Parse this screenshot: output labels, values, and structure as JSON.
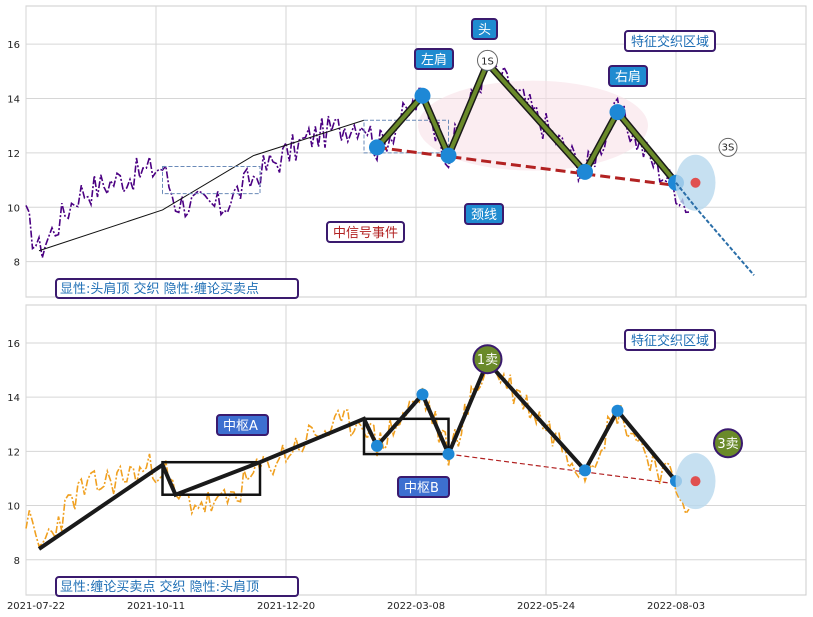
{
  "chart_data": [
    {
      "type": "line",
      "panel": "top",
      "ylim": [
        6.7,
        17.4
      ],
      "yticks": [
        8,
        10,
        12,
        14,
        16
      ],
      "xticks": [
        "2021-07-22",
        "2021-10-11",
        "2021-12-20",
        "2022-03-08",
        "2022-05-24",
        "2022-08-03"
      ],
      "grid": true,
      "price_color": "#4b0082",
      "trend_line": [
        [
          2,
          8.4
        ],
        [
          21,
          9.9
        ],
        [
          35,
          11.9
        ],
        [
          52,
          13.2
        ]
      ],
      "zhongshu_box": {
        "x0": 21,
        "x1": 36,
        "y0": 10.5,
        "y1": 11.5
      },
      "zhongshu_box2": {
        "x0": 52,
        "x1": 65,
        "y0": 12.0,
        "y1": 13.2
      },
      "pattern_points": [
        [
          54,
          12.2
        ],
        [
          61,
          14.1
        ],
        [
          65,
          11.9
        ],
        [
          71,
          15.3
        ],
        [
          86,
          11.3
        ],
        [
          91,
          13.5
        ],
        [
          100,
          10.9
        ]
      ],
      "neckline": [
        [
          54,
          12.2
        ],
        [
          100,
          10.8
        ]
      ],
      "projection": [
        [
          100,
          10.9
        ],
        [
          103,
          10.0
        ],
        [
          112,
          7.5
        ]
      ],
      "annotations": {
        "head": "头",
        "left_shoulder": "左肩",
        "right_shoulder": "右肩",
        "neckline": "颈线",
        "signal_event": "中信号事件",
        "feature_zone": "特征交织区域",
        "buy_sell_1": "1S",
        "buy_sell_3": "3S"
      },
      "caption": "显性:头肩顶 交织 隐性:缠论买卖点"
    },
    {
      "type": "line",
      "panel": "bottom",
      "ylim": [
        6.7,
        17.4
      ],
      "yticks": [
        8,
        10,
        12,
        14,
        16
      ],
      "xticks": [
        "2021-07-22",
        "2021-10-11",
        "2021-12-20",
        "2022-03-08",
        "2022-05-24",
        "2022-08-03"
      ],
      "grid": true,
      "price_color": "#f0a020",
      "zhongshu_a": {
        "label": "中枢A",
        "x0": 21,
        "x1": 36,
        "y0": 10.4,
        "y1": 11.6
      },
      "zhongshu_b": {
        "label": "中枢B",
        "x0": 52,
        "x1": 65,
        "y0": 11.9,
        "y1": 13.2
      },
      "pattern_points": [
        [
          2,
          8.4
        ],
        [
          21,
          11.5
        ],
        [
          23,
          10.4
        ],
        [
          36,
          11.6
        ],
        [
          52,
          13.2
        ],
        [
          54,
          12.2
        ],
        [
          61,
          14.1
        ],
        [
          65,
          11.9
        ],
        [
          71,
          15.3
        ],
        [
          86,
          11.3
        ],
        [
          91,
          13.5
        ],
        [
          100,
          10.9
        ]
      ],
      "neckline": [
        [
          65,
          11.9
        ],
        [
          100,
          10.8
        ]
      ],
      "annotations": {
        "zhongshu_a": "中枢A",
        "zhongshu_b": "中枢B",
        "feature_zone": "特征交织区域",
        "sell_1": "1卖",
        "sell_3": "3卖"
      },
      "caption": "显性:缠论买卖点 交织 隐性:头肩顶"
    }
  ],
  "x_axis_labels": [
    "2021-07-22",
    "2021-10-11",
    "2021-12-20",
    "2022-03-08",
    "2022-05-24",
    "2022-08-03"
  ],
  "colors": {
    "label_bg": "#1f8bd0",
    "label_border": "#3a1a6e",
    "node": "#1e88d6",
    "pattern_dark": "#1a1a1a",
    "pattern_olive": "#6a8a2a",
    "neckline": "#b22222",
    "zone": "#b8d8ee"
  }
}
